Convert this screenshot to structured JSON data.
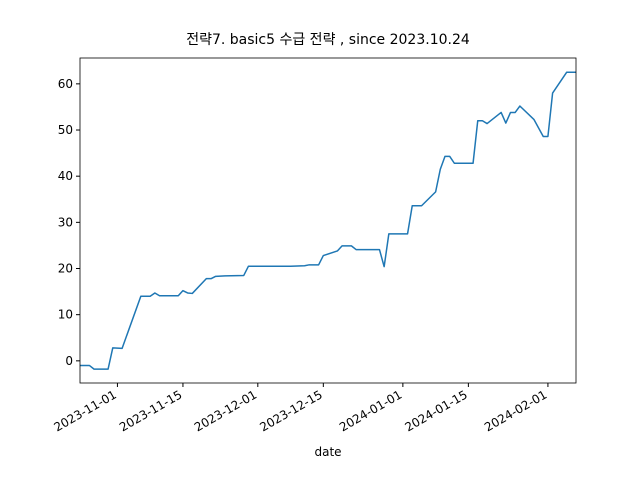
{
  "chart_data": {
    "type": "line",
    "title": "전략7. basic5 수급 전략 , since 2023.10.24",
    "x_label": "date",
    "x": [
      "2023-10-24",
      "2023-10-26",
      "2023-10-27",
      "2023-10-30",
      "2023-10-31",
      "2023-11-02",
      "2023-11-06",
      "2023-11-08",
      "2023-11-09",
      "2023-11-10",
      "2023-11-14",
      "2023-11-15",
      "2023-11-16",
      "2023-11-17",
      "2023-11-20",
      "2023-11-21",
      "2023-11-22",
      "2023-11-24",
      "2023-11-28",
      "2023-11-29",
      "2023-12-08",
      "2023-12-11",
      "2023-12-12",
      "2023-12-14",
      "2023-12-15",
      "2023-12-18",
      "2023-12-19",
      "2023-12-21",
      "2023-12-22",
      "2023-12-27",
      "2023-12-28",
      "2023-12-29",
      "2024-01-02",
      "2024-01-03",
      "2024-01-05",
      "2024-01-08",
      "2024-01-09",
      "2024-01-10",
      "2024-01-11",
      "2024-01-12",
      "2024-01-16",
      "2024-01-17",
      "2024-01-18",
      "2024-01-19",
      "2024-01-22",
      "2024-01-23",
      "2024-01-24",
      "2024-01-25",
      "2024-01-26",
      "2024-01-29",
      "2024-01-31",
      "2024-02-01",
      "2024-02-02",
      "2024-02-05",
      "2024-02-07"
    ],
    "series": [
      {
        "color": "#1f77b4",
        "values": [
          -1.0,
          -1.0,
          -1.8,
          -1.8,
          2.8,
          2.7,
          14.0,
          14.0,
          14.7,
          14.1,
          14.1,
          15.2,
          14.7,
          14.6,
          17.8,
          17.8,
          18.3,
          18.4,
          18.5,
          20.5,
          20.5,
          20.6,
          20.8,
          20.8,
          22.8,
          23.8,
          24.9,
          24.9,
          24.1,
          24.1,
          20.4,
          27.5,
          27.5,
          33.6,
          33.6,
          36.6,
          41.5,
          44.3,
          44.3,
          42.8,
          42.8,
          52.0,
          52.0,
          51.4,
          53.8,
          51.5,
          53.8,
          53.8,
          55.2,
          52.3,
          48.6,
          48.6,
          58.0,
          62.5,
          62.5
        ]
      }
    ],
    "xlim": [
      "2023-10-24",
      "2024-02-07"
    ],
    "xticks": [
      "2023-11-01",
      "2023-11-15",
      "2023-12-01",
      "2023-12-15",
      "2024-01-01",
      "2024-01-15",
      "2024-02-01"
    ],
    "ylim": [
      -4.8,
      65.6
    ],
    "yticks": [
      0,
      10,
      20,
      30,
      40,
      50,
      60
    ]
  }
}
